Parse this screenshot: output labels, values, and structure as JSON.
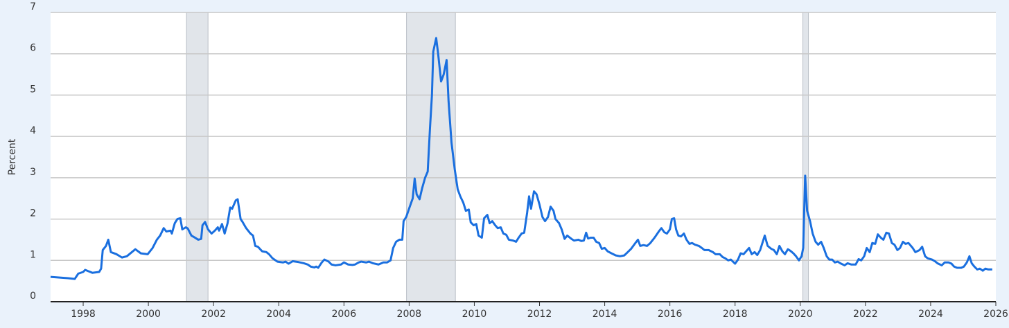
{
  "chart_data": {
    "type": "line",
    "y_label": "Percent",
    "grid": true,
    "xlim": [
      1997,
      2026
    ],
    "ylim": [
      0,
      7
    ],
    "xticks": [
      1998,
      2000,
      2002,
      2004,
      2006,
      2008,
      2010,
      2012,
      2014,
      2016,
      2018,
      2020,
      2022,
      2024,
      2026
    ],
    "yticks": [
      0,
      1,
      2,
      3,
      4,
      5,
      6,
      7
    ],
    "recessions": [
      [
        2001.17,
        2001.83
      ],
      [
        2007.92,
        2009.42
      ],
      [
        2020.08,
        2020.25
      ]
    ],
    "recession_color": "#e1e5ea",
    "series": [
      {
        "color": "#1a6fdf",
        "x": [
          1997.0,
          1997.53,
          1997.74,
          1997.85,
          1998.0,
          1998.06,
          1998.28,
          1998.49,
          1998.55,
          1998.6,
          1998.7,
          1998.77,
          1998.85,
          1999.02,
          1999.19,
          1999.34,
          1999.6,
          1999.77,
          1999.98,
          2000.13,
          2000.26,
          2000.36,
          2000.47,
          2000.55,
          2000.68,
          2000.72,
          2000.81,
          2000.89,
          2000.98,
          2001.04,
          2001.15,
          2001.21,
          2001.32,
          2001.43,
          2001.53,
          2001.62,
          2001.66,
          2001.74,
          2001.83,
          2001.94,
          2002.04,
          2002.13,
          2002.17,
          2002.26,
          2002.34,
          2002.43,
          2002.51,
          2002.57,
          2002.68,
          2002.74,
          2002.83,
          2002.89,
          2003.0,
          2003.13,
          2003.21,
          2003.28,
          2003.36,
          2003.49,
          2003.62,
          2003.7,
          2003.81,
          2003.96,
          2004.13,
          2004.21,
          2004.3,
          2004.43,
          2004.6,
          2004.77,
          2004.89,
          2004.98,
          2005.09,
          2005.15,
          2005.21,
          2005.32,
          2005.4,
          2005.53,
          2005.62,
          2005.74,
          2005.91,
          2006.0,
          2006.13,
          2006.26,
          2006.34,
          2006.45,
          2006.53,
          2006.68,
          2006.77,
          2006.89,
          2007.06,
          2007.21,
          2007.32,
          2007.43,
          2007.51,
          2007.6,
          2007.7,
          2007.79,
          2007.83,
          2007.91,
          2008.02,
          2008.11,
          2008.17,
          2008.23,
          2008.32,
          2008.4,
          2008.49,
          2008.57,
          2008.64,
          2008.7,
          2008.74,
          2008.83,
          2008.89,
          2008.98,
          2009.06,
          2009.15,
          2009.21,
          2009.3,
          2009.4,
          2009.49,
          2009.57,
          2009.66,
          2009.74,
          2009.83,
          2009.89,
          2009.98,
          2010.06,
          2010.13,
          2010.23,
          2010.3,
          2010.4,
          2010.47,
          2010.55,
          2010.64,
          2010.72,
          2010.81,
          2010.89,
          2010.98,
          2011.06,
          2011.19,
          2011.28,
          2011.36,
          2011.45,
          2011.53,
          2011.62,
          2011.68,
          2011.74,
          2011.83,
          2011.91,
          2012.0,
          2012.09,
          2012.17,
          2012.26,
          2012.34,
          2012.43,
          2012.49,
          2012.6,
          2012.68,
          2012.77,
          2012.85,
          2012.98,
          2013.06,
          2013.19,
          2013.28,
          2013.36,
          2013.43,
          2013.49,
          2013.57,
          2013.66,
          2013.74,
          2013.83,
          2013.91,
          2014.0,
          2014.09,
          2014.21,
          2014.34,
          2014.47,
          2014.6,
          2014.68,
          2014.81,
          2014.94,
          2015.02,
          2015.09,
          2015.19,
          2015.3,
          2015.4,
          2015.53,
          2015.66,
          2015.74,
          2015.83,
          2015.91,
          2016.0,
          2016.06,
          2016.13,
          2016.19,
          2016.26,
          2016.34,
          2016.43,
          2016.51,
          2016.6,
          2016.68,
          2016.77,
          2016.89,
          2016.98,
          2017.06,
          2017.19,
          2017.32,
          2017.4,
          2017.53,
          2017.62,
          2017.7,
          2017.79,
          2017.87,
          2018.0,
          2018.09,
          2018.17,
          2018.26,
          2018.34,
          2018.43,
          2018.51,
          2018.6,
          2018.68,
          2018.77,
          2018.85,
          2018.91,
          2019.0,
          2019.11,
          2019.19,
          2019.28,
          2019.36,
          2019.45,
          2019.53,
          2019.62,
          2019.7,
          2019.79,
          2019.87,
          2019.96,
          2020.04,
          2020.09,
          2020.15,
          2020.21,
          2020.3,
          2020.38,
          2020.47,
          2020.55,
          2020.64,
          2020.72,
          2020.81,
          2020.89,
          2020.98,
          2021.06,
          2021.15,
          2021.23,
          2021.36,
          2021.45,
          2021.57,
          2021.7,
          2021.79,
          2021.87,
          2021.96,
          2022.04,
          2022.13,
          2022.21,
          2022.3,
          2022.38,
          2022.47,
          2022.55,
          2022.64,
          2022.72,
          2022.81,
          2022.89,
          2022.98,
          2023.06,
          2023.15,
          2023.23,
          2023.32,
          2023.45,
          2023.53,
          2023.66,
          2023.74,
          2023.83,
          2023.91,
          2024.04,
          2024.13,
          2024.21,
          2024.34,
          2024.43,
          2024.55,
          2024.64,
          2024.72,
          2024.81,
          2024.94,
          2025.02,
          2025.11,
          2025.19,
          2025.26,
          2025.34,
          2025.43,
          2025.51,
          2025.6,
          2025.68,
          2025.77,
          2025.89
        ],
        "values": [
          0.6,
          0.57,
          0.55,
          0.68,
          0.72,
          0.77,
          0.7,
          0.72,
          0.8,
          1.25,
          1.35,
          1.5,
          1.2,
          1.15,
          1.07,
          1.1,
          1.27,
          1.17,
          1.15,
          1.3,
          1.5,
          1.6,
          1.78,
          1.7,
          1.72,
          1.65,
          1.9,
          2.0,
          2.02,
          1.75,
          1.8,
          1.77,
          1.6,
          1.55,
          1.5,
          1.52,
          1.85,
          1.93,
          1.75,
          1.65,
          1.72,
          1.8,
          1.72,
          1.88,
          1.65,
          1.9,
          2.28,
          2.25,
          2.45,
          2.48,
          2.0,
          1.93,
          1.78,
          1.65,
          1.6,
          1.35,
          1.33,
          1.22,
          1.2,
          1.15,
          1.05,
          0.97,
          0.95,
          0.97,
          0.92,
          0.98,
          0.96,
          0.93,
          0.9,
          0.85,
          0.83,
          0.85,
          0.82,
          0.95,
          1.02,
          0.97,
          0.9,
          0.88,
          0.9,
          0.95,
          0.9,
          0.89,
          0.9,
          0.95,
          0.97,
          0.95,
          0.97,
          0.93,
          0.9,
          0.95,
          0.95,
          1.0,
          1.3,
          1.45,
          1.5,
          1.5,
          1.95,
          2.05,
          2.3,
          2.5,
          2.98,
          2.6,
          2.48,
          2.75,
          3.0,
          3.15,
          4.2,
          5.0,
          6.05,
          6.38,
          6.0,
          5.33,
          5.5,
          5.85,
          4.85,
          3.85,
          3.2,
          2.72,
          2.55,
          2.4,
          2.2,
          2.23,
          1.92,
          1.85,
          1.88,
          1.6,
          1.55,
          2.02,
          2.1,
          1.9,
          1.95,
          1.85,
          1.78,
          1.8,
          1.65,
          1.62,
          1.5,
          1.48,
          1.45,
          1.55,
          1.65,
          1.67,
          2.15,
          2.55,
          2.25,
          2.67,
          2.6,
          2.35,
          2.05,
          1.95,
          2.05,
          2.3,
          2.2,
          2.0,
          1.9,
          1.75,
          1.52,
          1.6,
          1.52,
          1.48,
          1.5,
          1.47,
          1.48,
          1.67,
          1.53,
          1.55,
          1.55,
          1.45,
          1.42,
          1.28,
          1.3,
          1.22,
          1.17,
          1.12,
          1.1,
          1.12,
          1.18,
          1.28,
          1.42,
          1.5,
          1.35,
          1.37,
          1.35,
          1.42,
          1.55,
          1.7,
          1.78,
          1.68,
          1.65,
          1.75,
          2.0,
          2.02,
          1.75,
          1.6,
          1.58,
          1.65,
          1.5,
          1.4,
          1.42,
          1.38,
          1.35,
          1.3,
          1.25,
          1.25,
          1.2,
          1.15,
          1.15,
          1.08,
          1.05,
          1.0,
          1.02,
          0.92,
          1.02,
          1.17,
          1.15,
          1.22,
          1.3,
          1.15,
          1.2,
          1.13,
          1.25,
          1.45,
          1.6,
          1.35,
          1.28,
          1.25,
          1.15,
          1.35,
          1.22,
          1.15,
          1.27,
          1.23,
          1.17,
          1.1,
          1.0,
          1.1,
          1.3,
          3.05,
          2.2,
          1.95,
          1.65,
          1.45,
          1.38,
          1.45,
          1.3,
          1.1,
          1.02,
          1.02,
          0.95,
          0.97,
          0.93,
          0.88,
          0.93,
          0.9,
          0.9,
          1.03,
          1.0,
          1.1,
          1.3,
          1.2,
          1.42,
          1.4,
          1.63,
          1.55,
          1.5,
          1.67,
          1.65,
          1.42,
          1.38,
          1.25,
          1.3,
          1.45,
          1.4,
          1.42,
          1.3,
          1.2,
          1.25,
          1.33,
          1.1,
          1.05,
          1.02,
          0.98,
          0.93,
          0.88,
          0.95,
          0.95,
          0.92,
          0.85,
          0.82,
          0.82,
          0.85,
          0.95,
          1.1,
          0.93,
          0.85,
          0.78,
          0.8,
          0.75,
          0.8,
          0.78,
          0.78
        ]
      }
    ]
  }
}
